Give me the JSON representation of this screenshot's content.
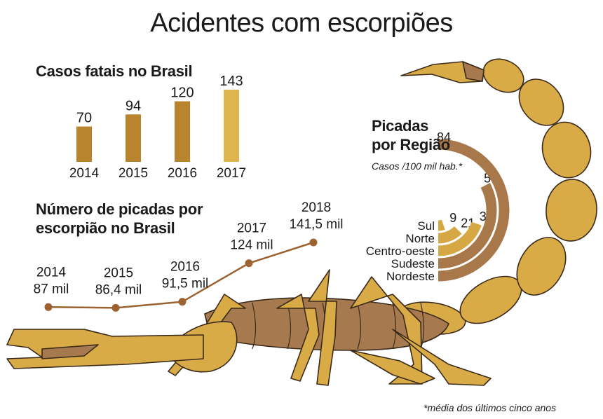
{
  "title": "Acidentes com escorpiões",
  "footnote": "*média dos últimos cinco anos",
  "colors": {
    "bar_dark": "#b8842e",
    "bar_light": "#e0b44f",
    "line": "#9c6230",
    "arc_dark": "#a8784a",
    "arc_light": "#d6a843",
    "scorpion_light": "#d9ab47",
    "scorpion_dark": "#a67a4e",
    "outline": "#3a2a1a"
  },
  "chart_data": [
    {
      "type": "bar",
      "title": "Casos fatais no Brasil",
      "categories": [
        "2014",
        "2015",
        "2016",
        "2017"
      ],
      "values": [
        70,
        94,
        120,
        143
      ],
      "value_labels": [
        "70",
        "94",
        "120",
        "143"
      ],
      "ylim": [
        0,
        143
      ],
      "grid": false
    },
    {
      "type": "line",
      "title_lines": [
        "Número de picadas por",
        "escorpião no Brasil"
      ],
      "x": [
        "2014",
        "2015",
        "2016",
        "2017",
        "2018"
      ],
      "values": [
        87,
        86.4,
        91.5,
        124,
        141.5
      ],
      "value_labels": [
        "87 mil",
        "86,4 mil",
        "91,5 mil",
        "124 mil",
        "141,5 mil"
      ],
      "ylim": [
        80,
        145
      ],
      "grid": false
    },
    {
      "type": "bar",
      "orientation": "radial",
      "title_lines": [
        "Picadas",
        "por Região"
      ],
      "subtitle": "Casos /100 mil hab.*",
      "categories": [
        "Sul",
        "Norte",
        "Centro-oeste",
        "Sudeste",
        "Nordeste"
      ],
      "values": [
        9,
        21,
        33,
        55,
        84
      ],
      "value_labels": [
        "9",
        "21",
        "33",
        "55",
        "84"
      ],
      "ylim": [
        0,
        84
      ],
      "grid": false
    }
  ]
}
